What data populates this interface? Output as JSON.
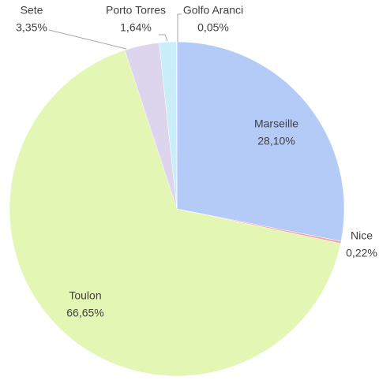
{
  "chart_data": {
    "type": "pie",
    "categories": [
      "Marseille",
      "Nice",
      "Toulon",
      "Sete",
      "Porto Torres",
      "Golfo Aranci"
    ],
    "values": [
      28.1,
      0.22,
      66.65,
      3.35,
      1.64,
      0.05
    ],
    "value_labels": [
      "28,10%",
      "0,22%",
      "66,65%",
      "3,35%",
      "1,64%",
      "0,05%"
    ],
    "colors": [
      "#b4cbf8",
      "#f2a7a7",
      "#e4f6b4",
      "#ddd4ee",
      "#c9eefa",
      "#f3efb5"
    ]
  }
}
